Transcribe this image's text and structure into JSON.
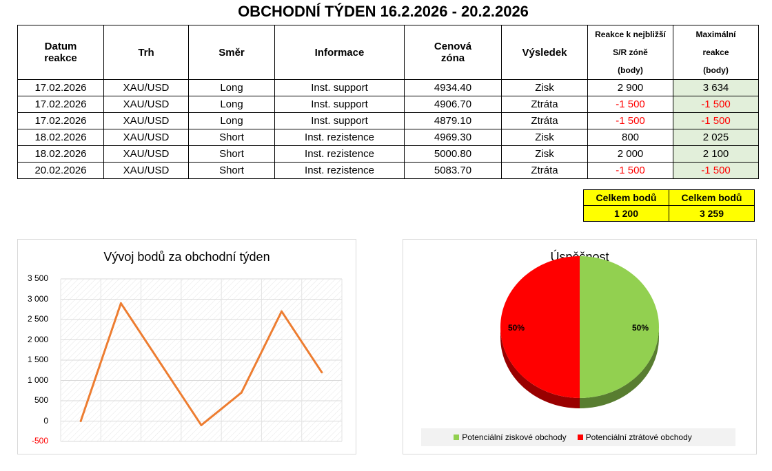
{
  "title": "OBCHODNÍ TÝDEN 16.2.2026 - 20.2.2026",
  "table": {
    "headers": {
      "date_line1": "Datum",
      "date_line2": "reakce",
      "market": "Trh",
      "direction": "Směr",
      "info": "Informace",
      "zone_line1": "Cenová",
      "zone_line2": "zóna",
      "result": "Výsledek",
      "reaction_line1": "Reakce k nejbližší",
      "reaction_line2": "S/R zóně",
      "reaction_line3": "(body)",
      "max_line1": "Maximální",
      "max_line2": "reakce",
      "max_line3": "(body)"
    },
    "rows": [
      {
        "date": "17.02.2026",
        "market": "XAU/USD",
        "direction": "Long",
        "info": "Inst. support",
        "zone": "4934.40",
        "result": "Zisk",
        "reaction": "2 900",
        "max": "3 634"
      },
      {
        "date": "17.02.2026",
        "market": "XAU/USD",
        "direction": "Long",
        "info": "Inst. support",
        "zone": "4906.70",
        "result": "Ztráta",
        "reaction": "-1 500",
        "max": "-1 500"
      },
      {
        "date": "17.02.2026",
        "market": "XAU/USD",
        "direction": "Long",
        "info": "Inst. support",
        "zone": "4879.10",
        "result": "Ztráta",
        "reaction": "-1 500",
        "max": "-1 500"
      },
      {
        "date": "18.02.2026",
        "market": "XAU/USD",
        "direction": "Short",
        "info": "Inst. rezistence",
        "zone": "4969.30",
        "result": "Zisk",
        "reaction": "800",
        "max": "2 025"
      },
      {
        "date": "18.02.2026",
        "market": "XAU/USD",
        "direction": "Short",
        "info": "Inst. rezistence",
        "zone": "5000.80",
        "result": "Zisk",
        "reaction": "2 000",
        "max": "2 100"
      },
      {
        "date": "20.02.2026",
        "market": "XAU/USD",
        "direction": "Short",
        "info": "Inst. rezistence",
        "zone": "5083.70",
        "result": "Ztráta",
        "reaction": "-1 500",
        "max": "-1 500"
      }
    ]
  },
  "totals": {
    "reaction_label": "Celkem bodů",
    "reaction_value": "1 200",
    "max_label": "Celkem bodů",
    "max_value": "3 259"
  },
  "colors": {
    "line": "#ed7d31",
    "negative_text": "#ff0000",
    "highlight_green": "#e2efda",
    "totals_yellow": "#ffff00",
    "pie_win": "#92d050",
    "pie_loss": "#ff0000"
  },
  "chart_data": [
    {
      "type": "line",
      "title": "Vývoj bodů za obchodní týden",
      "x": [
        1,
        2,
        3,
        4,
        5,
        6,
        7
      ],
      "series": [
        {
          "values": [
            0,
            2900,
            1400,
            -100,
            700,
            2700,
            1200
          ]
        }
      ],
      "ylim": [
        -500,
        3500
      ],
      "yticks": [
        "-500",
        "0",
        "500",
        "1 000",
        "1 500",
        "2 000",
        "2 500",
        "3 000",
        "3 500"
      ],
      "ytick_values": [
        -500,
        0,
        500,
        1000,
        1500,
        2000,
        2500,
        3000,
        3500
      ],
      "grid": true
    },
    {
      "type": "pie",
      "title": "Úspěšnost",
      "slices": [
        {
          "label": "Potenciální ziskové obchody",
          "value": 50,
          "display": "50%",
          "color": "#92d050"
        },
        {
          "label": "Potenciální ztrátové obchody",
          "value": 50,
          "display": "50%",
          "color": "#ff0000"
        }
      ],
      "legend": "bottom"
    }
  ]
}
